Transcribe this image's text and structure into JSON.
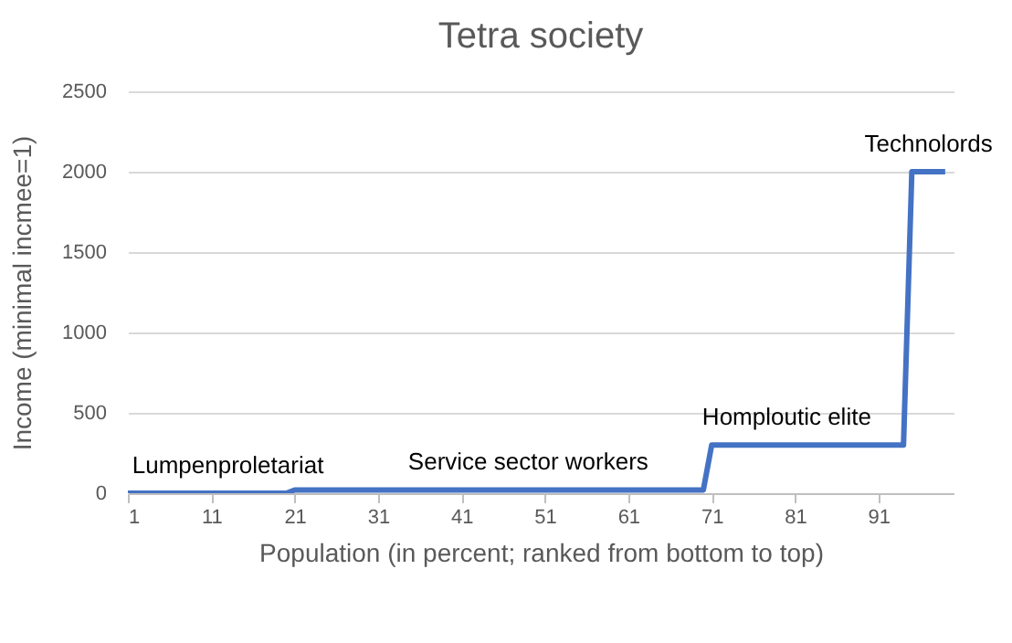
{
  "chart_data": {
    "type": "line",
    "title": "Tetra society",
    "xlabel": "Population (in percent; ranked from bottom to top)",
    "ylabel": "Income  (minimal incmee=1)",
    "x": [
      1,
      20,
      21,
      70,
      71,
      94,
      95,
      99
    ],
    "series": [
      {
        "color": "#4472c4",
        "values": [
          0,
          0,
          20,
          20,
          300,
          300,
          2000,
          2000
        ]
      }
    ],
    "xlim": [
      1,
      100
    ],
    "xticks": [
      1,
      11,
      21,
      31,
      41,
      51,
      61,
      71,
      81,
      91
    ],
    "ylim": [
      0,
      2500
    ],
    "yticks": [
      0,
      500,
      1000,
      1500,
      2000,
      2500
    ],
    "grid": "y",
    "marker": "none",
    "line_style": "solid",
    "annotations": [
      {
        "text": "Lumpenproletariat",
        "x": 13,
        "y": 0
      },
      {
        "text": "Service sector workers",
        "x": 49,
        "y": 20
      },
      {
        "text": "Homploutic elite",
        "x": 80,
        "y": 300
      },
      {
        "text": "Technolords",
        "x": 97,
        "y": 2000
      }
    ]
  }
}
